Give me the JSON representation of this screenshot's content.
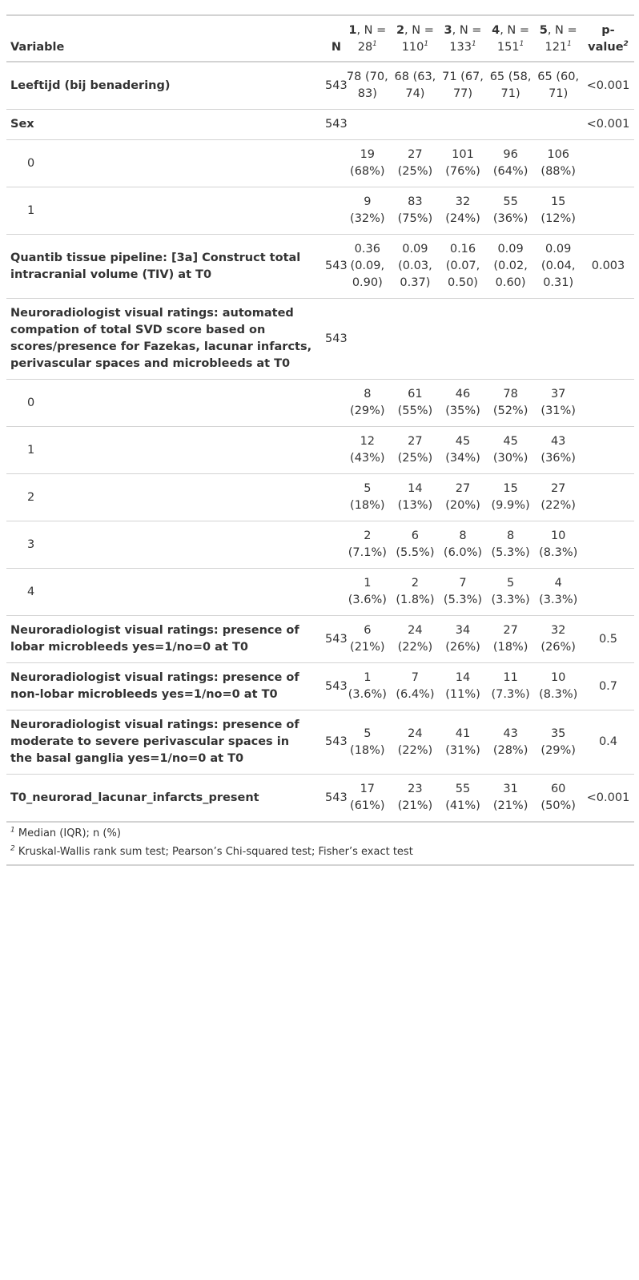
{
  "header": {
    "variable": "Variable",
    "n": "N",
    "groups": [
      {
        "id": "1",
        "label": ", N = 28",
        "sup": "1"
      },
      {
        "id": "2",
        "label": ", N = 110",
        "sup": "1"
      },
      {
        "id": "3",
        "label": ", N = 133",
        "sup": "1"
      },
      {
        "id": "4",
        "label": ", N = 151",
        "sup": "1"
      },
      {
        "id": "5",
        "label": ", N = 121",
        "sup": "1"
      }
    ],
    "pvalue": "p-value",
    "pvalue_sup": "2"
  },
  "rows": [
    {
      "label": "Leeftijd (bij benadering)",
      "level": false,
      "n": "543",
      "g": [
        "78 (70, 83)",
        "68 (63, 74)",
        "71 (67, 77)",
        "65 (58, 71)",
        "65 (60, 71)"
      ],
      "p": "<0.001"
    },
    {
      "label": "Sex",
      "level": false,
      "n": "543",
      "g": [
        "",
        "",
        "",
        "",
        ""
      ],
      "p": "<0.001"
    },
    {
      "label": "0",
      "level": true,
      "n": "",
      "g": [
        "19 (68%)",
        "27 (25%)",
        "101 (76%)",
        "96 (64%)",
        "106 (88%)"
      ],
      "p": ""
    },
    {
      "label": "1",
      "level": true,
      "n": "",
      "g": [
        "9 (32%)",
        "83 (75%)",
        "32 (24%)",
        "55 (36%)",
        "15 (12%)"
      ],
      "p": ""
    },
    {
      "label": "Quantib tissue pipeline: [3a] Construct total intracranial volume (TIV) at T0",
      "level": false,
      "n": "543",
      "g": [
        "0.36 (0.09, 0.90)",
        "0.09 (0.03, 0.37)",
        "0.16 (0.07, 0.50)",
        "0.09 (0.02, 0.60)",
        "0.09 (0.04, 0.31)"
      ],
      "p": "0.003"
    },
    {
      "label": "Neuroradiologist visual ratings: automated compation of total SVD score based on scores/presence for Fazekas, lacunar infarcts, perivascular spaces and microbleeds at T0",
      "level": false,
      "n": "543",
      "g": [
        "",
        "",
        "",
        "",
        ""
      ],
      "p": ""
    },
    {
      "label": "0",
      "level": true,
      "n": "",
      "g": [
        "8 (29%)",
        "61 (55%)",
        "46 (35%)",
        "78 (52%)",
        "37 (31%)"
      ],
      "p": ""
    },
    {
      "label": "1",
      "level": true,
      "n": "",
      "g": [
        "12 (43%)",
        "27 (25%)",
        "45 (34%)",
        "45 (30%)",
        "43 (36%)"
      ],
      "p": ""
    },
    {
      "label": "2",
      "level": true,
      "n": "",
      "g": [
        "5 (18%)",
        "14 (13%)",
        "27 (20%)",
        "15 (9.9%)",
        "27 (22%)"
      ],
      "p": ""
    },
    {
      "label": "3",
      "level": true,
      "n": "",
      "g": [
        "2 (7.1%)",
        "6 (5.5%)",
        "8 (6.0%)",
        "8 (5.3%)",
        "10 (8.3%)"
      ],
      "p": ""
    },
    {
      "label": "4",
      "level": true,
      "n": "",
      "g": [
        "1 (3.6%)",
        "2 (1.8%)",
        "7 (5.3%)",
        "5 (3.3%)",
        "4 (3.3%)"
      ],
      "p": ""
    },
    {
      "label": "Neuroradiologist visual ratings: presence of lobar microbleeds yes=1/no=0 at T0",
      "level": false,
      "n": "543",
      "g": [
        "6 (21%)",
        "24 (22%)",
        "34 (26%)",
        "27 (18%)",
        "32 (26%)"
      ],
      "p": "0.5"
    },
    {
      "label": "Neuroradiologist visual ratings: presence of non-lobar microbleeds yes=1/no=0 at T0",
      "level": false,
      "n": "543",
      "g": [
        "1 (3.6%)",
        "7 (6.4%)",
        "14 (11%)",
        "11 (7.3%)",
        "10 (8.3%)"
      ],
      "p": "0.7"
    },
    {
      "label": "Neuroradiologist visual ratings: presence of moderate to severe perivascular spaces in the basal ganglia yes=1/no=0 at T0",
      "level": false,
      "n": "543",
      "g": [
        "5 (18%)",
        "24 (22%)",
        "41 (31%)",
        "43 (28%)",
        "35 (29%)"
      ],
      "p": "0.4"
    },
    {
      "label": "T0_neurorad_lacunar_infarcts_present",
      "level": false,
      "n": "543",
      "g": [
        "17 (61%)",
        "23 (21%)",
        "55 (41%)",
        "31 (21%)",
        "60 (50%)"
      ],
      "p": "<0.001"
    }
  ],
  "footnotes": [
    {
      "mark": "1",
      "text": "Median (IQR); n (%)"
    },
    {
      "mark": "2",
      "text": "Kruskal-Wallis rank sum test; Pearson’s Chi-squared test; Fisher’s exact test"
    }
  ]
}
